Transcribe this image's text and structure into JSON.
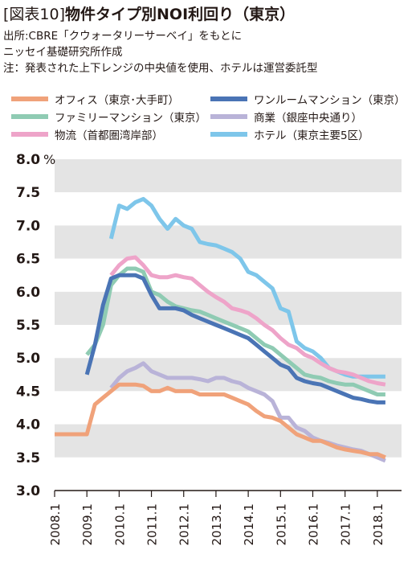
{
  "header": {
    "tag": "[図表10]",
    "title": "物件タイプ別NOI利回り（東京）",
    "source_line1": "出所:CBRE「クウォータリーサーベイ」をもとに",
    "source_line2": "ニッセイ基礎研究所作成",
    "note": "注：発表された上下レンジの中央値を使用、ホテルは運営委託型"
  },
  "chart_data": {
    "type": "line",
    "title": "物件タイプ別NOI利回り（東京）",
    "y_unit": "%",
    "ylim": [
      3.0,
      8.0
    ],
    "yticks": [
      "8.0",
      "7.5",
      "7.0",
      "6.5",
      "6.0",
      "5.5",
      "5.0",
      "4.5",
      "4.0",
      "3.5",
      "3.0"
    ],
    "xlim": [
      2008.1,
      2018.4
    ],
    "xticks": [
      "2008.1",
      "2009.1",
      "2010.1",
      "2011.1",
      "2012.1",
      "2013.1",
      "2014.1",
      "2015.1",
      "2016.1",
      "2017.1",
      "2018.1"
    ],
    "legend_placement": "top, two columns",
    "grid": "alternating horizontal bands",
    "series": [
      {
        "name": "オフィス（東京･大手町）",
        "color": "#F0A27A",
        "width": 5,
        "x": [
          2008.1,
          2008.2,
          2008.3,
          2008.4,
          2009.1,
          2009.2,
          2009.3,
          2009.4,
          2010.1,
          2010.2,
          2010.3,
          2010.4,
          2011.1,
          2011.2,
          2011.3,
          2011.4,
          2012.1,
          2012.2,
          2012.3,
          2012.4,
          2013.1,
          2013.2,
          2013.3,
          2013.4,
          2014.1,
          2014.2,
          2014.3,
          2014.4,
          2015.1,
          2015.2,
          2015.3,
          2015.4,
          2016.1,
          2016.2,
          2016.3,
          2016.4,
          2017.1,
          2017.2,
          2017.3,
          2017.4,
          2018.1,
          2018.2
        ],
        "y": [
          3.85,
          3.85,
          3.85,
          3.85,
          3.85,
          4.3,
          4.4,
          4.5,
          4.6,
          4.6,
          4.6,
          4.58,
          4.5,
          4.5,
          4.55,
          4.5,
          4.5,
          4.5,
          4.45,
          4.45,
          4.45,
          4.45,
          4.4,
          4.35,
          4.3,
          4.2,
          4.12,
          4.1,
          4.05,
          3.95,
          3.85,
          3.8,
          3.75,
          3.75,
          3.7,
          3.65,
          3.62,
          3.6,
          3.58,
          3.55,
          3.55,
          3.5
        ]
      },
      {
        "name": "ワンルームマンション（東京）",
        "color": "#4A74B5",
        "width": 5,
        "x": [
          2009.1,
          2009.2,
          2009.3,
          2009.4,
          2010.1,
          2010.2,
          2010.3,
          2010.4,
          2011.1,
          2011.2,
          2011.3,
          2011.4,
          2012.1,
          2012.2,
          2012.3,
          2012.4,
          2013.1,
          2013.2,
          2013.3,
          2013.4,
          2014.1,
          2014.2,
          2014.3,
          2014.4,
          2015.1,
          2015.2,
          2015.3,
          2015.4,
          2016.1,
          2016.2,
          2016.3,
          2016.4,
          2017.1,
          2017.2,
          2017.3,
          2017.4,
          2018.1,
          2018.2
        ],
        "y": [
          4.75,
          5.2,
          5.8,
          6.2,
          6.25,
          6.25,
          6.25,
          6.2,
          5.95,
          5.75,
          5.75,
          5.75,
          5.72,
          5.65,
          5.6,
          5.55,
          5.5,
          5.45,
          5.4,
          5.35,
          5.3,
          5.2,
          5.1,
          5.0,
          4.9,
          4.85,
          4.7,
          4.65,
          4.62,
          4.6,
          4.55,
          4.5,
          4.45,
          4.4,
          4.38,
          4.35,
          4.33,
          4.33
        ]
      },
      {
        "name": "ファミリーマンション（東京）",
        "color": "#8FCBB3",
        "width": 5,
        "x": [
          2009.1,
          2009.2,
          2009.3,
          2009.4,
          2010.1,
          2010.2,
          2010.3,
          2010.4,
          2011.1,
          2011.2,
          2011.3,
          2011.4,
          2012.1,
          2012.2,
          2012.3,
          2012.4,
          2013.1,
          2013.2,
          2013.3,
          2013.4,
          2014.1,
          2014.2,
          2014.3,
          2014.4,
          2015.1,
          2015.2,
          2015.3,
          2015.4,
          2016.1,
          2016.2,
          2016.3,
          2016.4,
          2017.1,
          2017.2,
          2017.3,
          2017.4,
          2018.1,
          2018.2
        ],
        "y": [
          5.05,
          5.2,
          5.5,
          6.1,
          6.25,
          6.35,
          6.35,
          6.3,
          6.0,
          5.95,
          5.85,
          5.78,
          5.75,
          5.72,
          5.7,
          5.65,
          5.6,
          5.55,
          5.5,
          5.45,
          5.4,
          5.3,
          5.2,
          5.15,
          5.05,
          4.95,
          4.85,
          4.75,
          4.72,
          4.7,
          4.65,
          4.62,
          4.6,
          4.6,
          4.55,
          4.5,
          4.45,
          4.45
        ]
      },
      {
        "name": "商業（銀座中央通り）",
        "color": "#B9B3D8",
        "width": 5,
        "x": [
          2009.4,
          2010.1,
          2010.2,
          2010.3,
          2010.4,
          2011.1,
          2011.2,
          2011.3,
          2011.4,
          2012.1,
          2012.2,
          2012.3,
          2012.4,
          2013.1,
          2013.2,
          2013.3,
          2013.4,
          2014.1,
          2014.2,
          2014.3,
          2014.4,
          2015.1,
          2015.2,
          2015.3,
          2015.4,
          2016.1,
          2016.2,
          2016.3,
          2016.4,
          2017.1,
          2017.2,
          2017.3,
          2017.4,
          2018.1,
          2018.2
        ],
        "y": [
          4.55,
          4.7,
          4.8,
          4.85,
          4.92,
          4.8,
          4.75,
          4.7,
          4.7,
          4.7,
          4.7,
          4.68,
          4.65,
          4.7,
          4.7,
          4.65,
          4.62,
          4.55,
          4.5,
          4.45,
          4.35,
          4.1,
          4.1,
          3.95,
          3.9,
          3.8,
          3.75,
          3.72,
          3.68,
          3.65,
          3.62,
          3.6,
          3.55,
          3.5,
          3.45
        ]
      },
      {
        "name": "物流（首都圏湾岸部）",
        "color": "#EEA4C9",
        "width": 5,
        "x": [
          2009.4,
          2010.1,
          2010.2,
          2010.3,
          2010.4,
          2011.1,
          2011.2,
          2011.3,
          2011.4,
          2012.1,
          2012.2,
          2012.3,
          2012.4,
          2013.1,
          2013.2,
          2013.3,
          2013.4,
          2014.1,
          2014.2,
          2014.3,
          2014.4,
          2015.1,
          2015.2,
          2015.3,
          2015.4,
          2016.1,
          2016.2,
          2016.3,
          2016.4,
          2017.1,
          2017.2,
          2017.3,
          2017.4,
          2018.1,
          2018.2
        ],
        "y": [
          6.25,
          6.4,
          6.5,
          6.52,
          6.4,
          6.25,
          6.22,
          6.22,
          6.25,
          6.22,
          6.2,
          6.1,
          6.0,
          5.92,
          5.85,
          5.75,
          5.72,
          5.68,
          5.6,
          5.5,
          5.42,
          5.3,
          5.2,
          5.15,
          5.05,
          5.0,
          4.92,
          4.85,
          4.8,
          4.78,
          4.75,
          4.7,
          4.65,
          4.62,
          4.6
        ]
      },
      {
        "name": "ホテル（東京主要5区）",
        "color": "#7EC6EA",
        "width": 5,
        "x": [
          2009.4,
          2010.1,
          2010.2,
          2010.3,
          2010.4,
          2011.1,
          2011.2,
          2011.3,
          2011.4,
          2012.1,
          2012.2,
          2012.3,
          2012.4,
          2013.1,
          2013.2,
          2013.3,
          2013.4,
          2014.1,
          2014.2,
          2014.3,
          2014.4,
          2015.1,
          2015.2,
          2015.3,
          2015.4,
          2016.1,
          2016.2,
          2016.3,
          2016.4,
          2017.1,
          2017.2,
          2017.3,
          2017.4,
          2018.1,
          2018.2
        ],
        "y": [
          6.8,
          7.3,
          7.25,
          7.35,
          7.4,
          7.3,
          7.1,
          6.95,
          7.1,
          7.0,
          6.95,
          6.75,
          6.72,
          6.7,
          6.65,
          6.6,
          6.5,
          6.3,
          6.25,
          6.15,
          6.05,
          5.75,
          5.7,
          5.25,
          5.15,
          5.1,
          5.0,
          4.85,
          4.8,
          4.75,
          4.72,
          4.72,
          4.72,
          4.72,
          4.72
        ]
      }
    ]
  }
}
